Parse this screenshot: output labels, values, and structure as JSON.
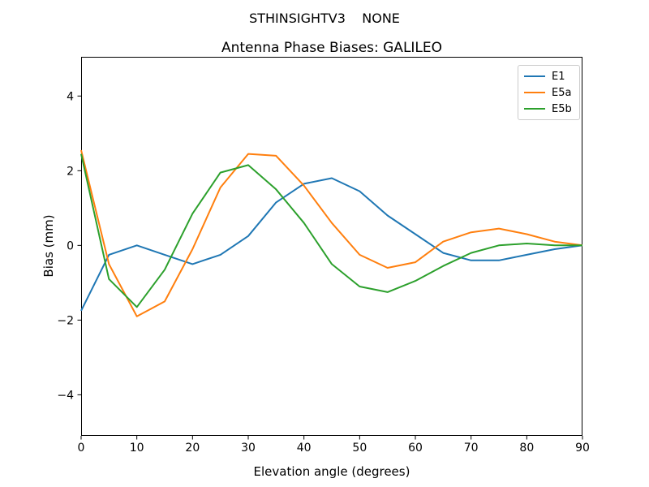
{
  "figure": {
    "suptitle": "STHINSIGHTV3    NONE"
  },
  "chart_data": {
    "type": "line",
    "title": "Antenna Phase Biases: GALILEO",
    "xlabel": "Elevation angle (degrees)",
    "ylabel": "Bias (mm)",
    "xlim": [
      0,
      90
    ],
    "ylim": [
      -5.1,
      5.05
    ],
    "xticks": [
      0,
      10,
      20,
      30,
      40,
      50,
      60,
      70,
      80,
      90
    ],
    "yticks": [
      -4,
      -2,
      0,
      2,
      4
    ],
    "grid": false,
    "legend_position": "upper right",
    "x": [
      0,
      5,
      10,
      15,
      20,
      25,
      30,
      35,
      40,
      45,
      50,
      55,
      60,
      65,
      70,
      75,
      80,
      85,
      90
    ],
    "series": [
      {
        "name": "E1",
        "color": "#1f77b4",
        "values": [
          -1.75,
          -0.25,
          0.0,
          -0.25,
          -0.5,
          -0.25,
          0.25,
          1.15,
          1.65,
          1.8,
          1.45,
          0.8,
          0.3,
          -0.2,
          -0.4,
          -0.4,
          -0.25,
          -0.1,
          0.0
        ]
      },
      {
        "name": "E5a",
        "color": "#ff7f0e",
        "values": [
          2.55,
          -0.5,
          -1.9,
          -1.5,
          -0.1,
          1.55,
          2.45,
          2.4,
          1.6,
          0.6,
          -0.25,
          -0.6,
          -0.45,
          0.1,
          0.35,
          0.45,
          0.3,
          0.1,
          0.0
        ]
      },
      {
        "name": "E5b",
        "color": "#2ca02c",
        "values": [
          2.45,
          -0.9,
          -1.65,
          -0.65,
          0.85,
          1.95,
          2.15,
          1.5,
          0.6,
          -0.5,
          -1.1,
          -1.25,
          -0.95,
          -0.55,
          -0.2,
          0.0,
          0.05,
          0.0,
          0.0
        ]
      }
    ]
  }
}
